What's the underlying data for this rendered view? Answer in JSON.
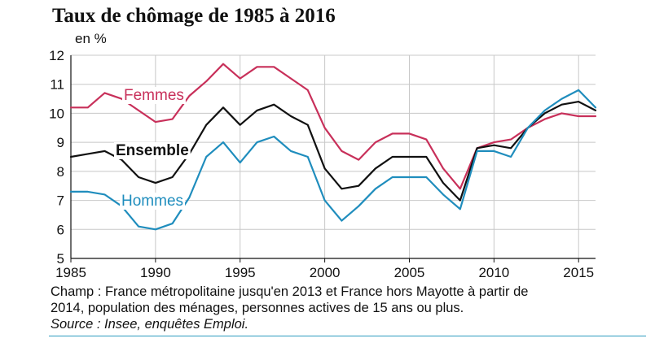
{
  "title": "Taux de chômage de 1985 à 2016",
  "unit": "en %",
  "footnote": {
    "line1": "Champ : France métropolitaine jusqu'en 2013 et France hors Mayotte à partir de",
    "line2": "2014, population des ménages, personnes actives de 15 ans ou plus.",
    "source": "Source : Insee, enquêtes Emploi."
  },
  "chart_data": {
    "type": "line",
    "title": "Taux de chômage de 1985 à 2016",
    "ylabel": "en %",
    "xlabel": "",
    "xlim": [
      1985,
      2016
    ],
    "ylim": [
      5,
      12
    ],
    "x_ticks": [
      1985,
      1990,
      1995,
      2000,
      2005,
      2010,
      2015
    ],
    "y_ticks": [
      5,
      6,
      7,
      8,
      9,
      10,
      11,
      12
    ],
    "grid": true,
    "x": [
      1985,
      1986,
      1987,
      1988,
      1989,
      1990,
      1991,
      1992,
      1993,
      1994,
      1995,
      1996,
      1997,
      1998,
      1999,
      2000,
      2001,
      2002,
      2003,
      2004,
      2005,
      2006,
      2007,
      2008,
      2009,
      2010,
      2011,
      2012,
      2013,
      2014,
      2015,
      2016
    ],
    "series": [
      {
        "name": "Femmes",
        "color": "#c8305a",
        "label_style": "normal",
        "values": [
          10.2,
          10.2,
          10.7,
          10.5,
          10.1,
          9.7,
          9.8,
          10.6,
          11.1,
          11.7,
          11.2,
          11.6,
          11.6,
          11.2,
          10.8,
          9.5,
          8.7,
          8.4,
          9.0,
          9.3,
          9.3,
          9.1,
          8.1,
          7.4,
          8.8,
          9.0,
          9.1,
          9.5,
          9.8,
          10.0,
          9.9,
          9.9
        ]
      },
      {
        "name": "Ensemble",
        "color": "#111111",
        "label_style": "bold",
        "values": [
          8.5,
          8.6,
          8.7,
          8.4,
          7.8,
          7.6,
          7.8,
          8.6,
          9.6,
          10.2,
          9.6,
          10.1,
          10.3,
          9.9,
          9.6,
          8.1,
          7.4,
          7.5,
          8.1,
          8.5,
          8.5,
          8.5,
          7.6,
          7.0,
          8.8,
          8.9,
          8.8,
          9.5,
          10.0,
          10.3,
          10.4,
          10.1
        ]
      },
      {
        "name": "Hommes",
        "color": "#1f8dbd",
        "label_style": "normal",
        "values": [
          7.3,
          7.3,
          7.2,
          6.8,
          6.1,
          6.0,
          6.2,
          7.1,
          8.5,
          9.0,
          8.3,
          9.0,
          9.2,
          8.7,
          8.5,
          7.0,
          6.3,
          6.8,
          7.4,
          7.8,
          7.8,
          7.8,
          7.2,
          6.7,
          8.7,
          8.7,
          8.5,
          9.5,
          10.1,
          10.5,
          10.8,
          10.2
        ]
      }
    ]
  }
}
